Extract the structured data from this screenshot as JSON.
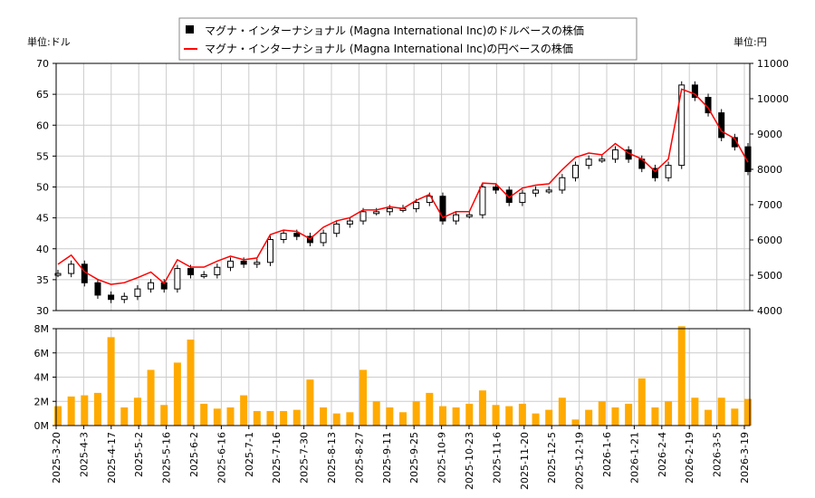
{
  "legend": {
    "usd_label": "マグナ・インターナショナル (Magna International Inc)のドルベースの株価",
    "jpy_label": "マグナ・インターナショナル (Magna International Inc)の円ベースの株価"
  },
  "units": {
    "left": "単位:ドル",
    "right": "単位:円"
  },
  "colors": {
    "usd": "#000000",
    "jpy": "#ff0000",
    "volume": "#ffaa00",
    "grid": "#cccccc"
  },
  "chart_data": [
    {
      "type": "candlestick+line",
      "ylabel_left": "単位:ドル",
      "ylabel_right": "単位:円",
      "ylim_left": [
        30,
        70
      ],
      "ylim_right": [
        4000,
        11000
      ],
      "yticks_left": [
        "30",
        "35",
        "40",
        "45",
        "50",
        "55",
        "60",
        "65",
        "70"
      ],
      "yticks_right": [
        "4000",
        "5000",
        "6000",
        "7000",
        "8000",
        "9000",
        "10000",
        "11000"
      ],
      "grid": true,
      "legend_position": "top-center",
      "series": [
        {
          "name": "マグナ・インターナショナル (Magna International Inc)のドルベースの株価",
          "values": [
            36.0,
            37.5,
            34.5,
            32.5,
            31.8,
            32.3,
            33.5,
            34.5,
            33.5,
            36.8,
            35.8,
            35.8,
            37.0,
            38.0,
            37.5,
            37.8,
            41.5,
            42.5,
            42.0,
            41.0,
            42.5,
            44.0,
            44.5,
            46.0,
            46.0,
            46.5,
            46.5,
            47.5,
            48.5,
            44.5,
            45.5,
            45.5,
            50.0,
            49.5,
            47.5,
            49.0,
            49.5,
            49.5,
            51.5,
            53.5,
            54.5,
            54.5,
            56.0,
            54.5,
            53.0,
            51.5,
            53.5,
            66.5,
            64.5,
            62.0,
            58.0,
            56.5,
            52.5
          ]
        },
        {
          "name": "マグナ・インターナショナル (Magna International Inc)の円ベースの株価",
          "values": [
            5310,
            5570,
            5100,
            4880,
            4740,
            4790,
            4930,
            5090,
            4770,
            5440,
            5230,
            5230,
            5400,
            5540,
            5440,
            5490,
            6150,
            6280,
            6240,
            6030,
            6360,
            6540,
            6630,
            6850,
            6850,
            6940,
            6890,
            7120,
            7290,
            6630,
            6800,
            6800,
            7610,
            7590,
            7200,
            7470,
            7550,
            7590,
            7990,
            8340,
            8460,
            8410,
            8730,
            8460,
            8290,
            7940,
            8290,
            10270,
            10130,
            9740,
            9080,
            8870,
            8200
          ]
        }
      ]
    },
    {
      "type": "bar",
      "ylim": [
        0,
        8
      ],
      "yticks": [
        "0M",
        "2M",
        "4M",
        "6M",
        "8M"
      ],
      "grid": true,
      "values_millions": [
        1.6,
        2.4,
        2.5,
        2.7,
        7.3,
        1.5,
        2.3,
        4.6,
        1.7,
        5.2,
        7.1,
        1.8,
        1.4,
        1.5,
        2.5,
        1.2,
        1.2,
        1.2,
        1.3,
        3.8,
        1.5,
        1.0,
        1.1,
        4.6,
        2.0,
        1.5,
        1.1,
        2.0,
        2.7,
        1.6,
        1.5,
        1.8,
        2.9,
        1.7,
        1.6,
        1.8,
        1.0,
        1.3,
        2.3,
        0.5,
        1.3,
        2.0,
        1.5,
        1.8,
        3.9,
        1.5,
        2.0,
        8.2,
        2.3,
        1.3,
        2.3,
        1.4,
        2.2
      ],
      "xticks": [
        "2025-3-20",
        "2025-4-3",
        "2025-4-17",
        "2025-5-2",
        "2025-5-16",
        "2025-6-2",
        "2025-6-16",
        "2025-7-1",
        "2025-7-16",
        "2025-7-30",
        "2025-8-13",
        "2025-8-27",
        "2025-9-11",
        "2025-9-25",
        "2025-10-9",
        "2025-10-23",
        "2025-11-6",
        "2025-11-20",
        "2025-12-5",
        "2025-12-19",
        "2026-1-6",
        "2026-1-21",
        "2026-2-4",
        "2026-2-19",
        "2026-3-5",
        "2026-3-19"
      ]
    }
  ]
}
